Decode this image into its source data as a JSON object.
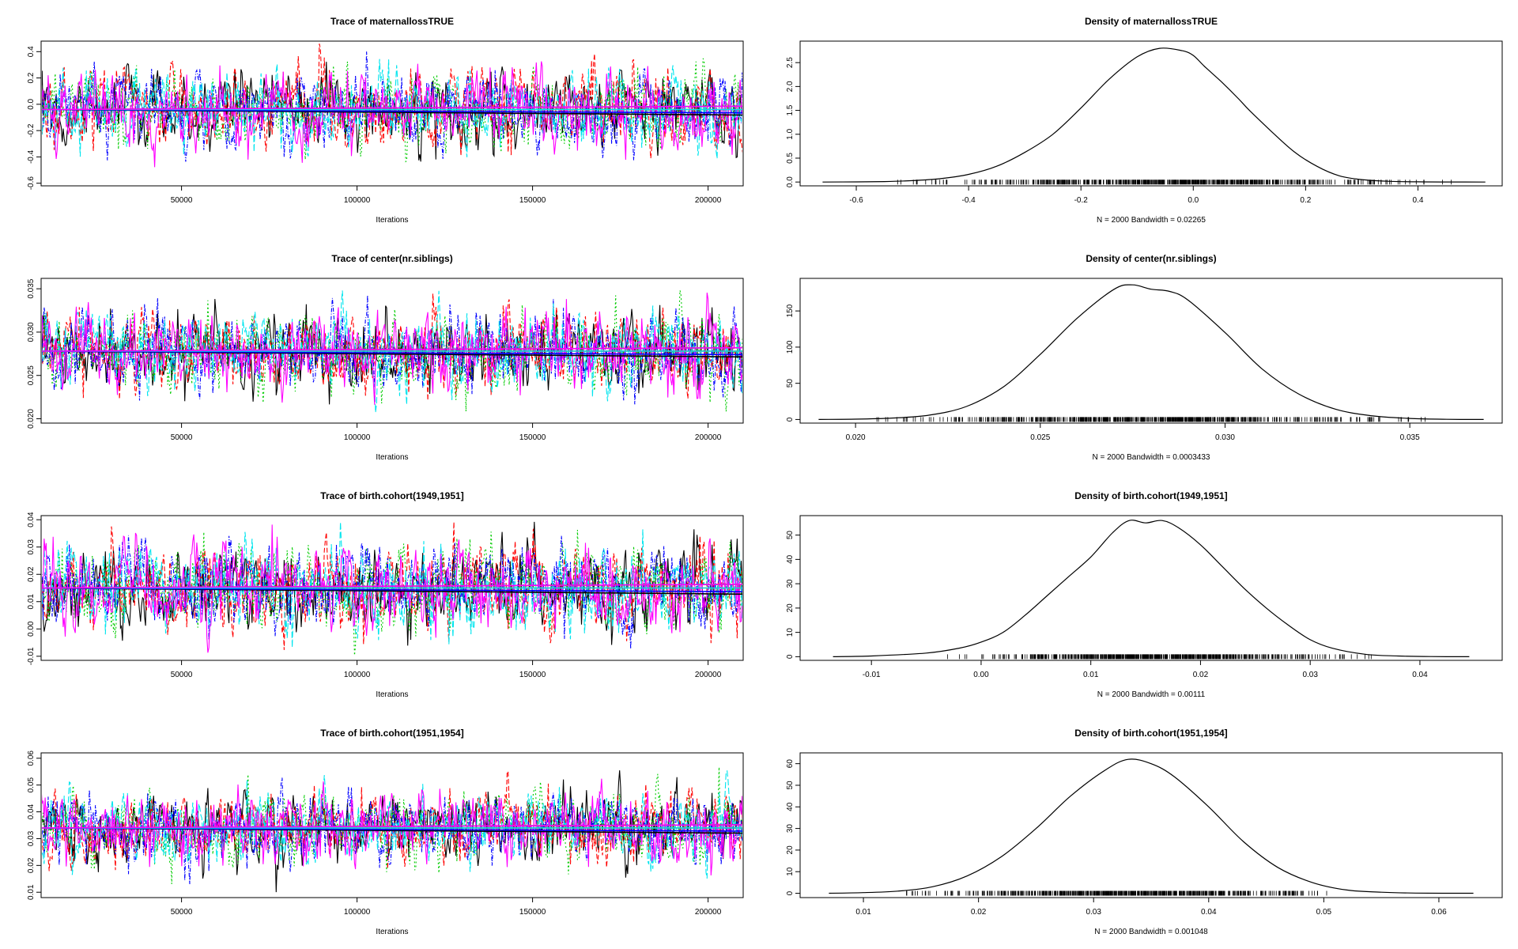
{
  "page": {
    "width": 1920,
    "height": 1200,
    "background": "#ffffff"
  },
  "chain_colors": [
    "#000000",
    "#ff0000",
    "#00cc00",
    "#0000ff",
    "#00e5ee",
    "#ff00ff"
  ],
  "chain_dash": [
    "",
    "6,3",
    "2,3",
    "5,2,1,2",
    "8,3",
    ""
  ],
  "chart_data": [
    {
      "type": "line",
      "variant": "trace",
      "title": "Trace of maternallossTRUE",
      "xlabel": "Iterations",
      "xticks": [
        50000,
        100000,
        150000,
        200000
      ],
      "xtick_labels": [
        "50000",
        "100000",
        "150000",
        "200000"
      ],
      "xlim": [
        10000,
        210000
      ],
      "yticks": [
        -0.6,
        -0.4,
        -0.2,
        0.0,
        0.2,
        0.4
      ],
      "ytick_labels": [
        "-0.6",
        "-0.4",
        "-0.2",
        "0.0",
        "0.2",
        "0.4"
      ],
      "ylim": [
        -0.62,
        0.48
      ],
      "chains": 6,
      "samples_per_chain": 2000,
      "chain_mean": -0.04,
      "chain_sd": 0.14,
      "chain_range": [
        -0.58,
        0.46
      ]
    },
    {
      "type": "line",
      "variant": "density",
      "title": "Density of maternallossTRUE",
      "xlabel": "N = 2000   Bandwidth = 0.02265",
      "xticks": [
        -0.6,
        -0.4,
        -0.2,
        0.0,
        0.2,
        0.4
      ],
      "xtick_labels": [
        "-0.6",
        "-0.4",
        "-0.2",
        "0.0",
        "0.2",
        "0.4"
      ],
      "xlim": [
        -0.7,
        0.55
      ],
      "yticks": [
        0.0,
        0.5,
        1.0,
        1.5,
        2.0,
        2.5
      ],
      "ytick_labels": [
        "0.0",
        "0.5",
        "1.0",
        "1.5",
        "2.0",
        "2.5"
      ],
      "ylim": [
        -0.08,
        2.95
      ],
      "x": [
        -0.66,
        -0.6,
        -0.55,
        -0.5,
        -0.45,
        -0.4,
        -0.35,
        -0.3,
        -0.25,
        -0.2,
        -0.15,
        -0.1,
        -0.06,
        -0.02,
        0.0,
        0.02,
        0.05,
        0.08,
        0.1,
        0.14,
        0.18,
        0.22,
        0.26,
        0.3,
        0.35,
        0.4,
        0.46,
        0.52
      ],
      "y": [
        0.0,
        0.003,
        0.01,
        0.03,
        0.07,
        0.16,
        0.33,
        0.62,
        1.0,
        1.55,
        2.15,
        2.62,
        2.8,
        2.75,
        2.65,
        2.42,
        2.1,
        1.75,
        1.5,
        1.05,
        0.63,
        0.33,
        0.13,
        0.05,
        0.015,
        0.004,
        0.001,
        0.0
      ],
      "rug_range": [
        -0.55,
        0.46
      ]
    },
    {
      "type": "line",
      "variant": "trace",
      "title": "Trace of center(nr.siblings)",
      "xlabel": "Iterations",
      "xticks": [
        50000,
        100000,
        150000,
        200000
      ],
      "xtick_labels": [
        "50000",
        "100000",
        "150000",
        "200000"
      ],
      "xlim": [
        10000,
        210000
      ],
      "yticks": [
        0.02,
        0.025,
        0.03,
        0.035
      ],
      "ytick_labels": [
        "0.020",
        "0.025",
        "0.030",
        "0.035"
      ],
      "ylim": [
        0.0195,
        0.0362
      ],
      "chains": 6,
      "samples_per_chain": 2000,
      "chain_mean": 0.0278,
      "chain_sd": 0.0022,
      "chain_range": [
        0.0201,
        0.0358
      ]
    },
    {
      "type": "line",
      "variant": "density",
      "title": "Density of center(nr.siblings)",
      "xlabel": "N = 2000   Bandwidth = 0.0003433",
      "xticks": [
        0.02,
        0.025,
        0.03,
        0.035
      ],
      "xtick_labels": [
        "0.020",
        "0.025",
        "0.030",
        "0.035"
      ],
      "xlim": [
        0.0185,
        0.0375
      ],
      "yticks": [
        0,
        50,
        100,
        150
      ],
      "ytick_labels": [
        "0",
        "50",
        "100",
        "150"
      ],
      "ylim": [
        -5,
        195
      ],
      "x": [
        0.019,
        0.02,
        0.021,
        0.022,
        0.023,
        0.024,
        0.025,
        0.026,
        0.027,
        0.0275,
        0.028,
        0.0285,
        0.029,
        0.03,
        0.031,
        0.032,
        0.033,
        0.034,
        0.035,
        0.036,
        0.037
      ],
      "y": [
        0,
        0.5,
        2,
        6,
        18,
        45,
        90,
        140,
        180,
        186,
        180,
        177,
        165,
        120,
        70,
        35,
        14,
        5,
        1.5,
        0.3,
        0
      ],
      "rug_range": [
        0.0205,
        0.0355
      ]
    },
    {
      "type": "line",
      "variant": "trace",
      "title": "Trace of birth.cohort(1949,1951]",
      "xlabel": "Iterations",
      "xticks": [
        50000,
        100000,
        150000,
        200000
      ],
      "xtick_labels": [
        "50000",
        "100000",
        "150000",
        "200000"
      ],
      "xlim": [
        10000,
        210000
      ],
      "yticks": [
        -0.01,
        0.0,
        0.01,
        0.02,
        0.03,
        0.04
      ],
      "ytick_labels": [
        "-0.01",
        "0.00",
        "0.01",
        "0.02",
        "0.03",
        "0.04"
      ],
      "ylim": [
        -0.0115,
        0.0415
      ],
      "chains": 6,
      "samples_per_chain": 2000,
      "chain_mean": 0.015,
      "chain_sd": 0.0075,
      "chain_range": [
        -0.01,
        0.041
      ]
    },
    {
      "type": "line",
      "variant": "density",
      "title": "Density of birth.cohort(1949,1951]",
      "xlabel": "N = 2000   Bandwidth = 0.00111",
      "xticks": [
        -0.01,
        0.0,
        0.01,
        0.02,
        0.03,
        0.04
      ],
      "xtick_labels": [
        "-0.01",
        "0.00",
        "0.01",
        "0.02",
        "0.03",
        "0.04"
      ],
      "xlim": [
        -0.0165,
        0.0475
      ],
      "yticks": [
        0,
        10,
        20,
        30,
        40,
        50
      ],
      "ytick_labels": [
        "0",
        "10",
        "20",
        "30",
        "40",
        "50"
      ],
      "ylim": [
        -1.5,
        58
      ],
      "x": [
        -0.0135,
        -0.01,
        -0.005,
        -0.002,
        0.0,
        0.002,
        0.004,
        0.006,
        0.008,
        0.01,
        0.012,
        0.0135,
        0.015,
        0.0165,
        0.018,
        0.02,
        0.022,
        0.024,
        0.026,
        0.028,
        0.03,
        0.032,
        0.035,
        0.038,
        0.041,
        0.0445
      ],
      "y": [
        0,
        0.3,
        1.5,
        3.5,
        6,
        10,
        17,
        25,
        33,
        41,
        51,
        56,
        55,
        56,
        53,
        46,
        37,
        28,
        20,
        13,
        7,
        3.5,
        1,
        0.3,
        0.05,
        0
      ],
      "rug_range": [
        -0.004,
        0.0365
      ]
    },
    {
      "type": "line",
      "variant": "trace",
      "title": "Trace of birth.cohort(1951,1954]",
      "xlabel": "Iterations",
      "xticks": [
        50000,
        100000,
        150000,
        200000
      ],
      "xtick_labels": [
        "50000",
        "100000",
        "150000",
        "200000"
      ],
      "xlim": [
        10000,
        210000
      ],
      "yticks": [
        0.01,
        0.02,
        0.03,
        0.04,
        0.05,
        0.06
      ],
      "ytick_labels": [
        "0.01",
        "0.02",
        "0.03",
        "0.04",
        "0.05",
        "0.06"
      ],
      "ylim": [
        0.008,
        0.062
      ],
      "chains": 6,
      "samples_per_chain": 2000,
      "chain_mean": 0.034,
      "chain_sd": 0.0065,
      "chain_range": [
        0.01,
        0.06
      ]
    },
    {
      "type": "line",
      "variant": "density",
      "title": "Density of birth.cohort(1951,1954]",
      "xlabel": "N = 2000   Bandwidth = 0.001048",
      "xticks": [
        0.01,
        0.02,
        0.03,
        0.04,
        0.05,
        0.06
      ],
      "xtick_labels": [
        "0.01",
        "0.02",
        "0.03",
        "0.04",
        "0.05",
        "0.06"
      ],
      "xlim": [
        0.0045,
        0.0655
      ],
      "yticks": [
        0,
        10,
        20,
        30,
        40,
        50,
        60
      ],
      "ytick_labels": [
        "0",
        "10",
        "20",
        "30",
        "40",
        "50",
        "60"
      ],
      "ylim": [
        -2,
        65
      ],
      "x": [
        0.007,
        0.01,
        0.013,
        0.016,
        0.019,
        0.022,
        0.025,
        0.028,
        0.031,
        0.033,
        0.035,
        0.037,
        0.04,
        0.043,
        0.046,
        0.049,
        0.052,
        0.055,
        0.058,
        0.063
      ],
      "y": [
        0,
        0.3,
        1,
        3,
        8,
        17,
        30,
        45,
        57,
        62,
        60,
        54,
        40,
        24,
        12,
        5,
        1.5,
        0.5,
        0.1,
        0
      ],
      "rug_range": [
        0.013,
        0.053
      ]
    }
  ]
}
